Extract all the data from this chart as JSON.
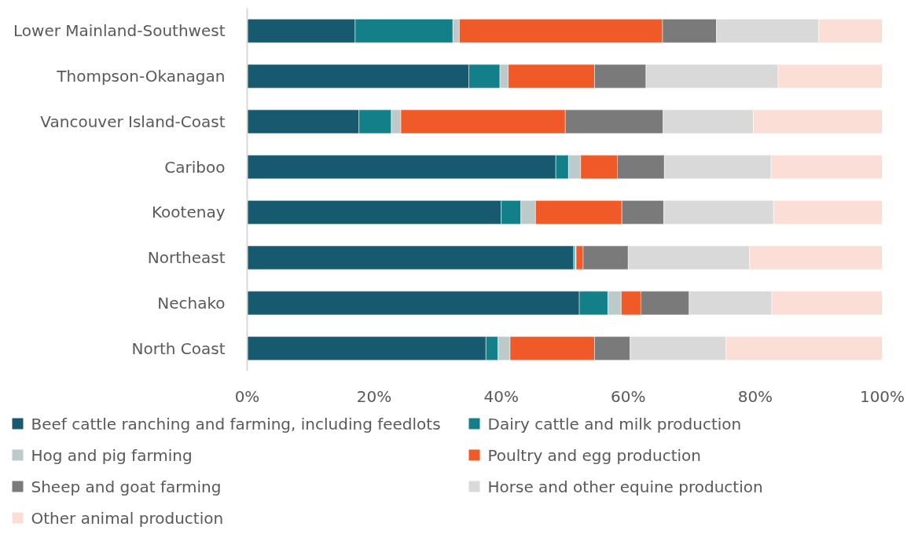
{
  "chart_data": {
    "type": "bar",
    "orientation": "horizontal",
    "stacked": true,
    "categories": [
      "Lower Mainland-Southwest",
      "Thompson-Okanagan",
      "Vancouver Island-Coast",
      "Cariboo",
      "Kootenay",
      "Northeast",
      "Nechako",
      "North Coast"
    ],
    "series": [
      {
        "name": "Beef cattle ranching and farming, including feedlots",
        "color": "#17596f",
        "values": [
          17.0,
          34.9,
          17.6,
          48.6,
          40.0,
          51.4,
          52.3,
          37.6
        ]
      },
      {
        "name": "Dairy cattle and milk production",
        "color": "#127f89",
        "values": [
          15.4,
          4.9,
          5.1,
          2.0,
          3.1,
          0.2,
          4.5,
          1.9
        ]
      },
      {
        "name": "Hog and pig farming",
        "color": "#bccac9",
        "values": [
          1.0,
          1.3,
          1.5,
          1.9,
          2.3,
          0.2,
          2.1,
          1.9
        ]
      },
      {
        "name": "Poultry and egg production",
        "color": "#f05a28",
        "values": [
          32.0,
          13.6,
          25.9,
          5.8,
          13.6,
          1.1,
          3.1,
          13.3
        ]
      },
      {
        "name": "Sheep and goat farming",
        "color": "#7a7a7a",
        "values": [
          8.5,
          8.1,
          15.4,
          7.4,
          6.6,
          7.1,
          7.6,
          5.6
        ]
      },
      {
        "name": "Horse and other equine production",
        "color": "#d9d9d9",
        "values": [
          16.1,
          20.8,
          14.2,
          16.8,
          17.3,
          19.1,
          13.0,
          15.1
        ]
      },
      {
        "name": "Other animal production",
        "color": "#fbdfd6",
        "values": [
          10.0,
          16.4,
          20.3,
          17.5,
          17.1,
          20.9,
          17.4,
          24.6
        ]
      }
    ],
    "xlim": [
      0,
      100
    ],
    "xticks": [
      {
        "value": 0,
        "label": "0%"
      },
      {
        "value": 20,
        "label": "20%"
      },
      {
        "value": 40,
        "label": "40%"
      },
      {
        "value": 60,
        "label": "60%"
      },
      {
        "value": 80,
        "label": "80%"
      },
      {
        "value": 100,
        "label": "100%"
      }
    ],
    "grid": false,
    "legend": "bottom"
  }
}
